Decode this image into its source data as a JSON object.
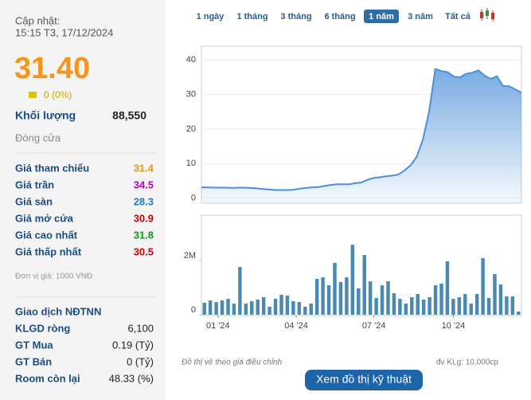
{
  "header": {
    "label": "Cập nhật:",
    "time": "15:15 T3, 17/12/2024"
  },
  "quote": {
    "price": "31.40",
    "price_color": "#f7941d",
    "change": "0 (0%)",
    "volume_label": "Khối lượng",
    "volume": "88,550",
    "status": "Đóng cửa"
  },
  "prices": [
    {
      "label": "Giá tham chiếu",
      "value": "31.4",
      "color": "#e89b12"
    },
    {
      "label": "Giá trần",
      "value": "34.5",
      "color": "#c000c0"
    },
    {
      "label": "Giá sàn",
      "value": "28.3",
      "color": "#1a7fc0"
    },
    {
      "label": "Giá mở cửa",
      "value": "30.9",
      "color": "#cc0000"
    },
    {
      "label": "Giá cao nhất",
      "value": "31.8",
      "color": "#119911"
    },
    {
      "label": "Giá thấp nhất",
      "value": "30.5",
      "color": "#cc0000"
    }
  ],
  "unit_note": "Đơn vị giá: 1000 VNĐ",
  "foreign": {
    "title": "Giao dịch NĐTNN",
    "rows": [
      [
        "KLGD ròng",
        "6,100"
      ],
      [
        "GT Mua",
        "0.19 (Tỷ)"
      ],
      [
        "GT Bán",
        "0 (Tỷ)"
      ],
      [
        "Room còn lại",
        "48.33 (%)"
      ]
    ]
  },
  "periods": {
    "items": [
      "1 ngày",
      "1 tháng",
      "3 tháng",
      "6 tháng",
      "1 năm",
      "3 năm",
      "Tất cả"
    ],
    "active": 4
  },
  "chart_data": [
    {
      "type": "area",
      "color": "#4a90d9",
      "x": [
        0,
        1,
        2,
        3,
        4,
        5,
        6,
        7,
        8,
        9,
        10,
        11,
        12,
        13,
        14,
        15,
        16,
        17,
        18,
        19,
        20,
        21,
        22,
        23,
        24,
        25,
        26,
        27,
        28,
        29,
        30,
        31,
        32,
        33,
        34,
        35,
        36,
        37,
        38,
        39,
        40,
        41,
        42,
        43,
        44,
        45,
        46,
        47,
        48,
        49,
        50,
        51,
        52
      ],
      "values": [
        3.1,
        3.1,
        3.0,
        3.0,
        3.0,
        2.9,
        3.0,
        3.0,
        2.9,
        2.8,
        2.6,
        2.5,
        2.3,
        2.3,
        2.3,
        2.4,
        2.7,
        2.9,
        3.1,
        3.2,
        3.5,
        3.8,
        4.0,
        4.0,
        4.0,
        4.3,
        4.5,
        5.3,
        5.8,
        6.0,
        6.3,
        6.5,
        6.8,
        8.0,
        9.5,
        12.0,
        17.0,
        25.0,
        37.4,
        36.8,
        36.5,
        35.2,
        35.0,
        36.0,
        36.3,
        37.0,
        35.5,
        34.5,
        35.3,
        32.5,
        32.4,
        31.5,
        30.5
      ],
      "xlim": [
        0,
        52
      ],
      "ylim": [
        -1.5,
        44
      ],
      "yticks": [
        0,
        10,
        20,
        30,
        40
      ],
      "grid": true
    },
    {
      "type": "bar",
      "color": "#4a8ab0",
      "values": [
        441000,
        529000,
        470000,
        529000,
        588000,
        412000,
        1765000,
        412000,
        500000,
        559000,
        647000,
        294000,
        588000,
        735000,
        706000,
        500000,
        470000,
        294000,
        412000,
        1324000,
        1382000,
        1088000,
        1912000,
        1206000,
        1382000,
        2588000,
        971000,
        2206000,
        1235000,
        618000,
        1088000,
        1235000,
        794000,
        588000,
        412000,
        647000,
        765000,
        559000,
        647000,
        1088000,
        1147000,
        1971000,
        588000,
        647000,
        765000,
        412000,
        765000,
        2088000,
        618000,
        1500000,
        1118000,
        676000,
        676000,
        118000
      ],
      "xlim": [
        -0.5,
        53.5
      ],
      "ylim": [
        0,
        3680000
      ],
      "yticks": [
        0,
        {
          "value": 2000000,
          "label": "2M"
        }
      ],
      "xticks": [
        {
          "value": 2.3,
          "label": "01 '24"
        },
        {
          "value": 15.5,
          "label": "04 '24"
        },
        {
          "value": 28.6,
          "label": "07 '24"
        },
        {
          "value": 42,
          "label": "10 '24"
        }
      ]
    }
  ],
  "footer": {
    "note": "Đồ thị vẽ theo giá điều chỉnh",
    "unit": "đv KLg: 10,000cp",
    "button": "Xem đồ thị kỹ thuật"
  }
}
